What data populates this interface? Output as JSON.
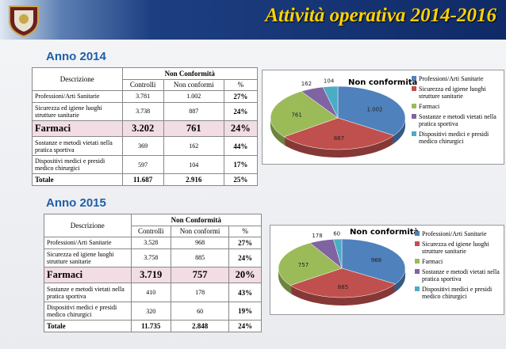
{
  "header": {
    "title": "Attività operativa 2014-2016"
  },
  "sections": [
    {
      "heading": "Anno 2014",
      "table": {
        "description": "Descrizione",
        "group": "Non Conformità",
        "columns": [
          "Controlli",
          "Non conformi",
          "%"
        ],
        "rows": [
          [
            "Professioni/Arti Sanitarie",
            "3.781",
            "1.002",
            "27%"
          ],
          [
            "Sicurezza ed igiene luoghi strutture sanitarie",
            "3.738",
            "887",
            "24%"
          ],
          [
            "Farmaci",
            "3.202",
            "761",
            "24%"
          ],
          [
            "Sostanze e metodi vietati nella pratica sportiva",
            "369",
            "162",
            "44%"
          ],
          [
            "Dispositivi medici e presidi medico chirurgici",
            "597",
            "104",
            "17%"
          ],
          [
            "Totale",
            "11.687",
            "2.916",
            "25%"
          ]
        ]
      },
      "chart": {
        "type": "pie",
        "title": "Non conformità",
        "categories": [
          "Professioni/Arti Sanitarie",
          "Sicurezza ed igiene luoghi strutture sanitarie",
          "Farmaci",
          "Sostanze e metodi vietati nella pratica sportiva",
          "Dispositivi medici e presidi medico chirurgici"
        ],
        "values": [
          1002,
          887,
          761,
          162,
          104
        ],
        "value_labels": [
          "1.002",
          "887",
          "761",
          "162",
          "104"
        ],
        "colors": [
          "#4f81bd",
          "#c0504d",
          "#9bbb59",
          "#8064a2",
          "#4bacc6"
        ]
      }
    },
    {
      "heading": "Anno 2015",
      "table": {
        "description": "Descrizione",
        "group": "Non Conformità",
        "columns": [
          "Controlli",
          "Non conformi",
          "%"
        ],
        "rows": [
          [
            "Professioni/Arti Sanitarie",
            "3.528",
            "968",
            "27%"
          ],
          [
            "Sicurezza ed igiene luoghi strutture sanitarie",
            "3.758",
            "885",
            "24%"
          ],
          [
            "Farmaci",
            "3.719",
            "757",
            "20%"
          ],
          [
            "Sostanze e metodi vietati nella pratica sportiva",
            "410",
            "178",
            "43%"
          ],
          [
            "Dispositivi medici e presidi medico chirurgici",
            "320",
            "60",
            "19%"
          ],
          [
            "Totale",
            "11.735",
            "2.848",
            "24%"
          ]
        ]
      },
      "chart": {
        "type": "pie",
        "title": "Non conformità",
        "categories": [
          "Professioni/Arti Sanitarie",
          "Sicurezza ed igiene luoghi strutture sanitarie",
          "Farmaci",
          "Sostanze e metodi vietati nella pratica sportiva",
          "Dispositivi medici e presidi medico chirurgici"
        ],
        "values": [
          968,
          885,
          757,
          178,
          60
        ],
        "value_labels": [
          "968",
          "885",
          "757",
          "178",
          "60"
        ],
        "colors": [
          "#4f81bd",
          "#c0504d",
          "#9bbb59",
          "#8064a2",
          "#4bacc6"
        ]
      }
    }
  ]
}
